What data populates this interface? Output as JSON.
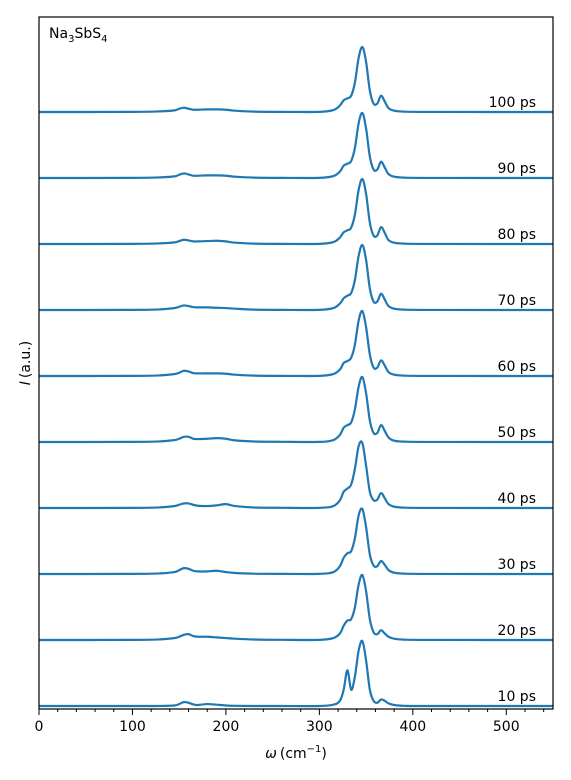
{
  "chart_data": {
    "type": "line",
    "title": "Na3SbS4",
    "title_parts": {
      "a": "Na",
      "a_sub": "3",
      "b": "SbS",
      "b_sub": "4"
    },
    "xlabel_parts": {
      "symbol": "ω",
      "unit": "(cm",
      "exp": "−1",
      "close": ")"
    },
    "ylabel_parts": {
      "symbol": "I",
      "unit": "(a.u.)"
    },
    "xlim": [
      0,
      550
    ],
    "x_ticks": [
      0,
      100,
      200,
      300,
      400,
      500
    ],
    "x_tick_labels": [
      "0",
      "100",
      "200",
      "300",
      "400",
      "500"
    ],
    "y_ticks_visible": false,
    "grid": false,
    "line_color": "#1f77b4",
    "x": [
      0,
      100,
      130,
      145,
      150,
      155,
      160,
      165,
      170,
      180,
      190,
      200,
      210,
      230,
      260,
      300,
      315,
      322,
      326,
      330,
      334,
      338,
      342,
      346,
      350,
      354,
      358,
      362,
      366,
      370,
      374,
      380,
      390,
      420,
      550
    ],
    "series": [
      {
        "name": "10 ps",
        "values": [
          0,
          0,
          0.001,
          0.008,
          0.03,
          0.06,
          0.05,
          0.025,
          0.015,
          0.03,
          0.02,
          0.008,
          0.003,
          0,
          0,
          0,
          0.02,
          0.08,
          0.25,
          0.55,
          0.25,
          0.45,
          0.85,
          1.0,
          0.7,
          0.25,
          0.08,
          0.05,
          0.1,
          0.08,
          0.04,
          0.015,
          0.003,
          0,
          0
        ]
      },
      {
        "name": "20 ps",
        "values": [
          0,
          0.002,
          0.01,
          0.03,
          0.05,
          0.08,
          0.09,
          0.06,
          0.05,
          0.05,
          0.04,
          0.03,
          0.02,
          0.008,
          0.003,
          0.002,
          0.03,
          0.1,
          0.22,
          0.3,
          0.32,
          0.5,
          0.85,
          1.0,
          0.75,
          0.32,
          0.12,
          0.09,
          0.15,
          0.1,
          0.05,
          0.02,
          0.006,
          0.001,
          0
        ]
      },
      {
        "name": "30 ps",
        "values": [
          0,
          0.002,
          0.01,
          0.03,
          0.06,
          0.09,
          0.08,
          0.05,
          0.04,
          0.04,
          0.05,
          0.03,
          0.015,
          0.005,
          0.002,
          0.002,
          0.03,
          0.12,
          0.25,
          0.32,
          0.35,
          0.55,
          0.9,
          1.0,
          0.72,
          0.3,
          0.13,
          0.12,
          0.2,
          0.14,
          0.06,
          0.02,
          0.006,
          0.001,
          0
        ]
      },
      {
        "name": "40 ps",
        "values": [
          0,
          0.002,
          0.01,
          0.03,
          0.05,
          0.07,
          0.07,
          0.05,
          0.035,
          0.03,
          0.04,
          0.06,
          0.03,
          0.008,
          0.003,
          0.002,
          0.03,
          0.12,
          0.25,
          0.3,
          0.36,
          0.6,
          0.95,
          1.0,
          0.65,
          0.25,
          0.12,
          0.13,
          0.23,
          0.15,
          0.06,
          0.02,
          0.006,
          0.001,
          0
        ]
      },
      {
        "name": "50 ps",
        "values": [
          0,
          0.002,
          0.01,
          0.03,
          0.05,
          0.08,
          0.08,
          0.05,
          0.045,
          0.05,
          0.06,
          0.05,
          0.025,
          0.008,
          0.003,
          0.002,
          0.03,
          0.11,
          0.22,
          0.26,
          0.3,
          0.5,
          0.85,
          1.0,
          0.75,
          0.33,
          0.14,
          0.14,
          0.26,
          0.17,
          0.07,
          0.02,
          0.006,
          0.001,
          0
        ]
      },
      {
        "name": "60 ps",
        "values": [
          0,
          0.002,
          0.01,
          0.03,
          0.05,
          0.08,
          0.07,
          0.045,
          0.04,
          0.04,
          0.04,
          0.035,
          0.02,
          0.006,
          0.002,
          0.002,
          0.03,
          0.1,
          0.2,
          0.23,
          0.28,
          0.48,
          0.85,
          1.0,
          0.75,
          0.33,
          0.13,
          0.13,
          0.24,
          0.16,
          0.06,
          0.02,
          0.006,
          0.001,
          0
        ]
      },
      {
        "name": "70 ps",
        "values": [
          0,
          0.002,
          0.01,
          0.03,
          0.05,
          0.07,
          0.06,
          0.045,
          0.04,
          0.04,
          0.035,
          0.03,
          0.02,
          0.006,
          0.002,
          0.002,
          0.03,
          0.1,
          0.18,
          0.22,
          0.26,
          0.46,
          0.83,
          1.0,
          0.77,
          0.33,
          0.13,
          0.13,
          0.25,
          0.16,
          0.06,
          0.02,
          0.006,
          0.001,
          0
        ]
      },
      {
        "name": "80 ps",
        "values": [
          0,
          0.002,
          0.01,
          0.025,
          0.045,
          0.065,
          0.055,
          0.04,
          0.04,
          0.045,
          0.05,
          0.04,
          0.02,
          0.006,
          0.002,
          0.002,
          0.03,
          0.1,
          0.18,
          0.21,
          0.25,
          0.45,
          0.83,
          1.0,
          0.77,
          0.33,
          0.13,
          0.13,
          0.26,
          0.17,
          0.06,
          0.02,
          0.006,
          0.001,
          0
        ]
      },
      {
        "name": "90 ps",
        "values": [
          0,
          0.002,
          0.01,
          0.025,
          0.05,
          0.07,
          0.055,
          0.035,
          0.035,
          0.04,
          0.04,
          0.035,
          0.02,
          0.006,
          0.002,
          0.002,
          0.03,
          0.1,
          0.19,
          0.22,
          0.26,
          0.46,
          0.84,
          1.0,
          0.76,
          0.33,
          0.13,
          0.13,
          0.25,
          0.16,
          0.06,
          0.02,
          0.006,
          0.001,
          0
        ]
      },
      {
        "name": "100 ps",
        "values": [
          0,
          0.002,
          0.01,
          0.025,
          0.05,
          0.065,
          0.05,
          0.035,
          0.035,
          0.04,
          0.04,
          0.035,
          0.02,
          0.006,
          0.002,
          0.002,
          0.03,
          0.1,
          0.18,
          0.21,
          0.25,
          0.45,
          0.83,
          1.0,
          0.77,
          0.33,
          0.13,
          0.13,
          0.25,
          0.16,
          0.06,
          0.02,
          0.006,
          0.001,
          0
        ]
      }
    ]
  }
}
